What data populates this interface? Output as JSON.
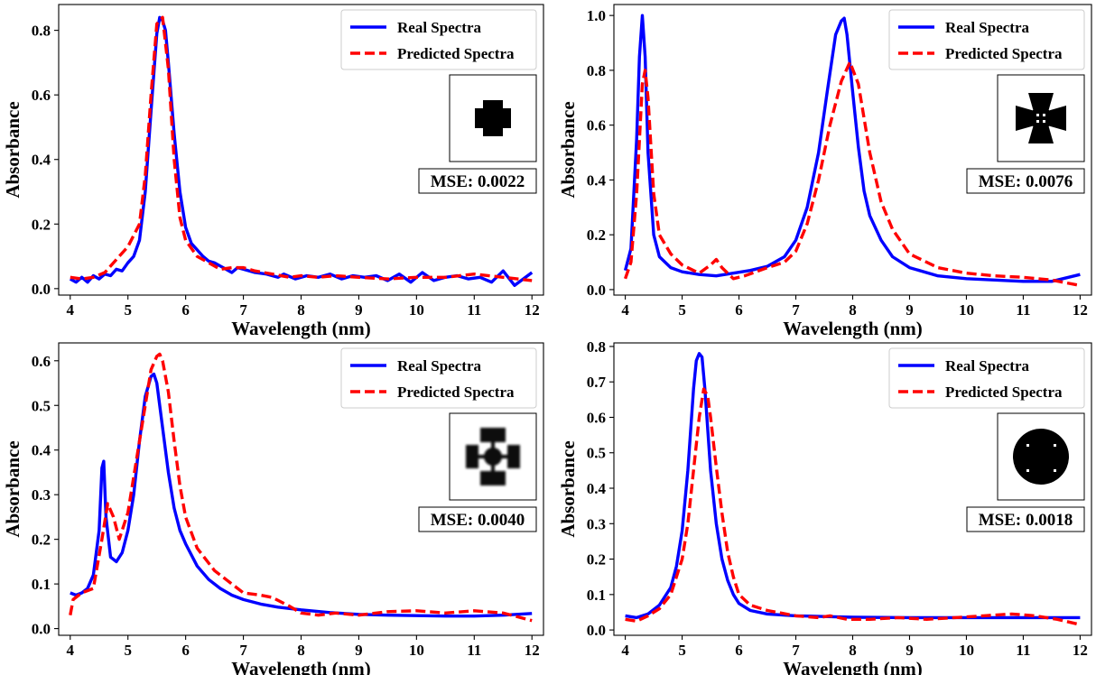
{
  "chart_data": [
    {
      "type": "line",
      "xlabel": "Wavelength (nm)",
      "ylabel": "Absorbance",
      "xlim": [
        3.8,
        12.2
      ],
      "ylim": [
        -0.02,
        0.88
      ],
      "xticks": [
        4,
        5,
        6,
        7,
        8,
        9,
        10,
        11,
        12
      ],
      "yticks": [
        0.0,
        0.2,
        0.4,
        0.6,
        0.8
      ],
      "ytick_labels": [
        "0.0",
        "0.2",
        "0.4",
        "0.6",
        "0.8"
      ],
      "legend_position": "top-right",
      "inset_shape": "plus",
      "annotation": "MSE: 0.0022",
      "series": [
        {
          "name": "Real Spectra",
          "color": "#0000ff",
          "style": "solid",
          "x": [
            4.0,
            4.1,
            4.2,
            4.3,
            4.4,
            4.5,
            4.6,
            4.7,
            4.8,
            4.9,
            5.0,
            5.1,
            5.2,
            5.3,
            5.4,
            5.5,
            5.55,
            5.6,
            5.65,
            5.7,
            5.8,
            5.9,
            6.0,
            6.1,
            6.2,
            6.3,
            6.4,
            6.5,
            6.6,
            6.7,
            6.8,
            6.9,
            7.0,
            7.2,
            7.4,
            7.6,
            7.7,
            7.9,
            8.1,
            8.3,
            8.5,
            8.7,
            8.9,
            9.1,
            9.3,
            9.5,
            9.7,
            9.9,
            10.1,
            10.3,
            10.5,
            10.7,
            10.9,
            11.1,
            11.3,
            11.5,
            11.7,
            12.0
          ],
          "y": [
            0.03,
            0.02,
            0.035,
            0.02,
            0.04,
            0.03,
            0.045,
            0.04,
            0.06,
            0.055,
            0.08,
            0.1,
            0.15,
            0.3,
            0.55,
            0.79,
            0.84,
            0.83,
            0.8,
            0.7,
            0.48,
            0.3,
            0.19,
            0.14,
            0.12,
            0.1,
            0.085,
            0.08,
            0.07,
            0.06,
            0.05,
            0.065,
            0.06,
            0.05,
            0.045,
            0.035,
            0.045,
            0.03,
            0.04,
            0.035,
            0.045,
            0.03,
            0.04,
            0.035,
            0.04,
            0.025,
            0.045,
            0.02,
            0.05,
            0.025,
            0.035,
            0.04,
            0.03,
            0.035,
            0.02,
            0.055,
            0.01,
            0.05
          ]
        },
        {
          "name": "Predicted Spectra",
          "color": "#ff0000",
          "style": "dashed",
          "x": [
            4.0,
            4.2,
            4.4,
            4.6,
            4.8,
            5.0,
            5.2,
            5.3,
            5.4,
            5.5,
            5.6,
            5.7,
            5.8,
            5.9,
            6.0,
            6.2,
            6.4,
            6.6,
            6.8,
            7.0,
            7.2,
            7.5,
            7.8,
            8.0,
            8.3,
            8.6,
            9.0,
            9.5,
            10.0,
            10.5,
            11.0,
            11.5,
            12.0
          ],
          "y": [
            0.035,
            0.03,
            0.035,
            0.05,
            0.09,
            0.13,
            0.2,
            0.35,
            0.6,
            0.82,
            0.84,
            0.68,
            0.4,
            0.22,
            0.15,
            0.1,
            0.08,
            0.06,
            0.065,
            0.065,
            0.055,
            0.045,
            0.035,
            0.04,
            0.035,
            0.04,
            0.035,
            0.03,
            0.035,
            0.035,
            0.045,
            0.035,
            0.025
          ]
        }
      ]
    },
    {
      "type": "line",
      "xlabel": "Wavelength (nm)",
      "ylabel": "Absorbance",
      "xlim": [
        3.8,
        12.2
      ],
      "ylim": [
        -0.02,
        1.04
      ],
      "xticks": [
        4,
        5,
        6,
        7,
        8,
        9,
        10,
        11,
        12
      ],
      "yticks": [
        0.0,
        0.2,
        0.4,
        0.6,
        0.8,
        1.0
      ],
      "ytick_labels": [
        "0.0",
        "0.2",
        "0.4",
        "0.6",
        "0.8",
        "1.0"
      ],
      "legend_position": "top-right",
      "inset_shape": "cross-pattee",
      "annotation": "MSE: 0.0076",
      "series": [
        {
          "name": "Real Spectra",
          "color": "#0000ff",
          "style": "solid",
          "x": [
            4.0,
            4.1,
            4.2,
            4.25,
            4.3,
            4.35,
            4.4,
            4.5,
            4.6,
            4.8,
            5.0,
            5.3,
            5.6,
            5.9,
            6.2,
            6.5,
            6.8,
            7.0,
            7.2,
            7.4,
            7.55,
            7.7,
            7.8,
            7.85,
            7.9,
            8.0,
            8.1,
            8.2,
            8.3,
            8.5,
            8.7,
            9.0,
            9.5,
            10.0,
            10.5,
            11.0,
            11.5,
            12.0
          ],
          "y": [
            0.07,
            0.15,
            0.55,
            0.85,
            1.0,
            0.85,
            0.5,
            0.2,
            0.12,
            0.08,
            0.065,
            0.055,
            0.05,
            0.06,
            0.07,
            0.085,
            0.12,
            0.18,
            0.3,
            0.5,
            0.72,
            0.93,
            0.98,
            0.99,
            0.93,
            0.72,
            0.52,
            0.36,
            0.27,
            0.18,
            0.12,
            0.08,
            0.05,
            0.04,
            0.035,
            0.03,
            0.03,
            0.055
          ]
        },
        {
          "name": "Predicted Spectra",
          "color": "#ff0000",
          "style": "dashed",
          "x": [
            4.0,
            4.1,
            4.2,
            4.3,
            4.35,
            4.4,
            4.5,
            4.6,
            4.8,
            5.0,
            5.3,
            5.5,
            5.6,
            5.7,
            5.9,
            6.1,
            6.5,
            6.8,
            7.0,
            7.2,
            7.4,
            7.6,
            7.8,
            7.95,
            8.1,
            8.3,
            8.5,
            8.7,
            9.0,
            9.5,
            10.0,
            10.5,
            11.0,
            11.5,
            12.0
          ],
          "y": [
            0.04,
            0.1,
            0.35,
            0.75,
            0.8,
            0.7,
            0.35,
            0.2,
            0.13,
            0.09,
            0.06,
            0.09,
            0.11,
            0.08,
            0.04,
            0.05,
            0.08,
            0.1,
            0.14,
            0.24,
            0.4,
            0.6,
            0.76,
            0.83,
            0.75,
            0.5,
            0.32,
            0.22,
            0.13,
            0.08,
            0.06,
            0.05,
            0.045,
            0.035,
            0.015
          ]
        }
      ]
    },
    {
      "type": "line",
      "xlabel": "Wavelength (nm)",
      "ylabel": "Absorbance",
      "xlim": [
        3.8,
        12.2
      ],
      "ylim": [
        -0.015,
        0.64
      ],
      "xticks": [
        4,
        5,
        6,
        7,
        8,
        9,
        10,
        11,
        12
      ],
      "yticks": [
        0.0,
        0.1,
        0.2,
        0.3,
        0.4,
        0.5,
        0.6
      ],
      "ytick_labels": [
        "0.0",
        "0.1",
        "0.2",
        "0.3",
        "0.4",
        "0.5",
        "0.6"
      ],
      "legend_position": "top-right",
      "inset_shape": "blurry-four-blocks",
      "annotation": "MSE: 0.0040",
      "series": [
        {
          "name": "Real Spectra",
          "color": "#0000ff",
          "style": "solid",
          "x": [
            4.0,
            4.1,
            4.2,
            4.3,
            4.4,
            4.5,
            4.55,
            4.58,
            4.62,
            4.7,
            4.8,
            4.9,
            5.0,
            5.1,
            5.2,
            5.3,
            5.4,
            5.45,
            5.5,
            5.6,
            5.7,
            5.8,
            5.9,
            6.0,
            6.2,
            6.4,
            6.6,
            6.8,
            7.0,
            7.3,
            7.6,
            8.0,
            8.5,
            9.0,
            9.5,
            10.0,
            10.5,
            11.0,
            11.5,
            12.0
          ],
          "y": [
            0.08,
            0.075,
            0.08,
            0.09,
            0.12,
            0.22,
            0.36,
            0.375,
            0.25,
            0.16,
            0.15,
            0.17,
            0.22,
            0.3,
            0.42,
            0.52,
            0.565,
            0.57,
            0.55,
            0.45,
            0.35,
            0.27,
            0.22,
            0.19,
            0.14,
            0.11,
            0.09,
            0.075,
            0.065,
            0.055,
            0.048,
            0.042,
            0.036,
            0.032,
            0.03,
            0.029,
            0.028,
            0.028,
            0.03,
            0.034
          ]
        },
        {
          "name": "Predicted Spectra",
          "color": "#ff0000",
          "style": "dashed",
          "x": [
            4.0,
            4.05,
            4.2,
            4.4,
            4.55,
            4.65,
            4.75,
            4.85,
            5.0,
            5.2,
            5.4,
            5.5,
            5.55,
            5.6,
            5.7,
            5.8,
            5.9,
            6.0,
            6.2,
            6.5,
            6.8,
            7.0,
            7.3,
            7.5,
            7.8,
            8.0,
            8.3,
            8.6,
            9.0,
            9.5,
            10.0,
            10.5,
            11.0,
            11.5,
            12.0
          ],
          "y": [
            0.03,
            0.065,
            0.08,
            0.09,
            0.2,
            0.28,
            0.25,
            0.2,
            0.26,
            0.42,
            0.58,
            0.61,
            0.615,
            0.6,
            0.53,
            0.42,
            0.32,
            0.25,
            0.18,
            0.13,
            0.1,
            0.08,
            0.075,
            0.07,
            0.05,
            0.035,
            0.03,
            0.035,
            0.03,
            0.038,
            0.04,
            0.035,
            0.04,
            0.035,
            0.018
          ]
        }
      ]
    },
    {
      "type": "line",
      "xlabel": "Wavelength (nm)",
      "ylabel": "Absorbance",
      "xlim": [
        3.8,
        12.2
      ],
      "ylim": [
        -0.015,
        0.81
      ],
      "xticks": [
        4,
        5,
        6,
        7,
        8,
        9,
        10,
        11,
        12
      ],
      "yticks": [
        0.0,
        0.1,
        0.2,
        0.3,
        0.4,
        0.5,
        0.6,
        0.7,
        0.8
      ],
      "ytick_labels": [
        "0.0",
        "0.1",
        "0.2",
        "0.3",
        "0.4",
        "0.5",
        "0.6",
        "0.7",
        "0.8"
      ],
      "legend_position": "top-right",
      "inset_shape": "disc-with-four-dots",
      "annotation": "MSE: 0.0018",
      "series": [
        {
          "name": "Real Spectra",
          "color": "#0000ff",
          "style": "solid",
          "x": [
            4.0,
            4.2,
            4.4,
            4.6,
            4.8,
            4.9,
            5.0,
            5.1,
            5.2,
            5.25,
            5.3,
            5.35,
            5.4,
            5.5,
            5.6,
            5.7,
            5.8,
            5.9,
            6.0,
            6.2,
            6.5,
            7.0,
            7.5,
            8.0,
            9.0,
            10.0,
            11.0,
            12.0
          ],
          "y": [
            0.04,
            0.035,
            0.045,
            0.07,
            0.12,
            0.18,
            0.28,
            0.45,
            0.68,
            0.76,
            0.78,
            0.77,
            0.68,
            0.45,
            0.3,
            0.2,
            0.14,
            0.1,
            0.075,
            0.055,
            0.045,
            0.04,
            0.038,
            0.036,
            0.035,
            0.035,
            0.035,
            0.035
          ]
        },
        {
          "name": "Predicted Spectra",
          "color": "#ff0000",
          "style": "dashed",
          "x": [
            4.0,
            4.2,
            4.4,
            4.6,
            4.8,
            5.0,
            5.1,
            5.2,
            5.3,
            5.38,
            5.45,
            5.5,
            5.6,
            5.7,
            5.8,
            5.9,
            6.0,
            6.2,
            6.5,
            7.0,
            7.4,
            7.6,
            7.9,
            8.3,
            8.8,
            9.3,
            9.8,
            10.3,
            10.8,
            11.2,
            11.6,
            12.0
          ],
          "y": [
            0.03,
            0.025,
            0.04,
            0.06,
            0.1,
            0.2,
            0.3,
            0.45,
            0.6,
            0.68,
            0.66,
            0.6,
            0.46,
            0.33,
            0.22,
            0.15,
            0.1,
            0.07,
            0.055,
            0.04,
            0.035,
            0.04,
            0.03,
            0.03,
            0.035,
            0.03,
            0.035,
            0.04,
            0.045,
            0.04,
            0.03,
            0.015
          ]
        }
      ]
    }
  ]
}
